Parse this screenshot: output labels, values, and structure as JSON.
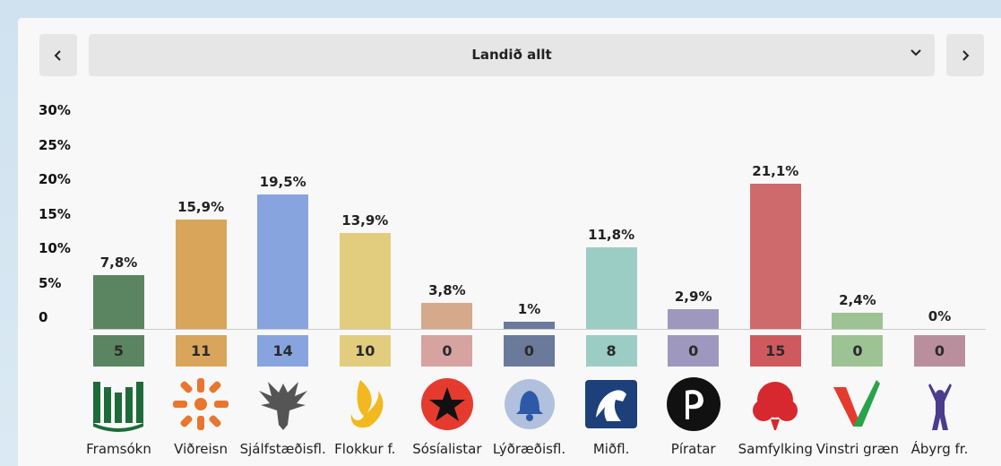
{
  "selector": {
    "label": "Landið allt",
    "prev_icon": "chevron-left-icon",
    "next_icon": "chevron-right-icon",
    "dropdown_icon": "chevron-down-icon"
  },
  "chart_data": {
    "type": "bar",
    "title": "Landið allt",
    "ylim": [
      0,
      30
    ],
    "yticks": [
      "0",
      "5%",
      "10%",
      "15%",
      "20%",
      "25%",
      "30%"
    ],
    "ytick_values": [
      0,
      5,
      10,
      15,
      20,
      25,
      30
    ],
    "categories": [
      "Framsókn",
      "Viðreisn",
      "Sjálfstæðisfl.",
      "Flokkur f.",
      "Sósíalistar",
      "Lýðræðisfl.",
      "Miðfl.",
      "Píratar",
      "Samfylking",
      "Vinstri græn",
      "Ábyrg fr."
    ],
    "values": [
      7.8,
      15.9,
      19.5,
      13.9,
      3.8,
      1,
      11.8,
      2.9,
      21.1,
      2.4,
      0
    ],
    "value_labels": [
      "7,8%",
      "15,9%",
      "19,5%",
      "13,9%",
      "3,8%",
      "1%",
      "11,8%",
      "2,9%",
      "21,1%",
      "2,4%",
      "0%"
    ],
    "seats": [
      "5",
      "11",
      "14",
      "10",
      "0",
      "0",
      "8",
      "0",
      "15",
      "0",
      "0"
    ],
    "bar_colors": [
      "#5b8560",
      "#d9a55a",
      "#88a4df",
      "#e2cd7f",
      "#d6a98c",
      "#6b7a9b",
      "#9ccdc4",
      "#9e97be",
      "#cf6a6c",
      "#9dc294",
      "#b98f9e"
    ],
    "seat_colors": [
      "#5b8560",
      "#d9a55a",
      "#88a4df",
      "#e2cd7f",
      "#d6a3a0",
      "#6b7a9b",
      "#9ccdc4",
      "#9e97be",
      "#cf5a5e",
      "#9dc294",
      "#b98f9e"
    ],
    "logo_icons": [
      "framsokn-logo-icon",
      "vidreisn-logo-icon",
      "eagle-logo-icon",
      "flame-logo-icon",
      "star-logo-icon",
      "bell-logo-icon",
      "horse-logo-icon",
      "pirate-logo-icon",
      "rose-logo-icon",
      "v-logo-icon",
      "figure-logo-icon"
    ]
  }
}
